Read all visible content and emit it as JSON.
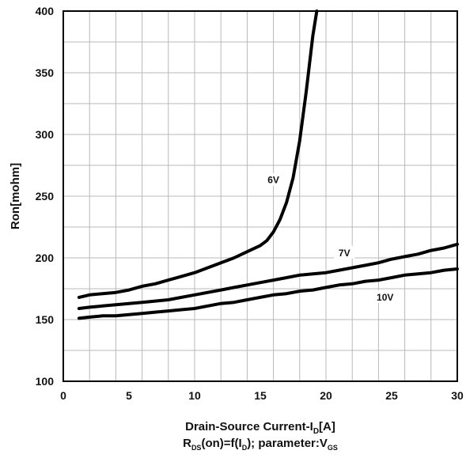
{
  "chart_data": {
    "type": "line",
    "xlabel_main": "Drain-Source Current-I",
    "xlabel_sub": "D",
    "xlabel_unit": "[A]",
    "subtitle_parts": [
      "R",
      "DS",
      "(on)=f(I",
      "D",
      "); parameter:V",
      "GS"
    ],
    "ylabel": "Ron[mohm]",
    "xlim": [
      0,
      30
    ],
    "ylim": [
      100,
      400
    ],
    "x_ticks": [
      0,
      5,
      10,
      15,
      20,
      25,
      30
    ],
    "x_tick_labels": [
      "0",
      "5",
      "10",
      "15",
      "20",
      "25",
      "30"
    ],
    "y_ticks": [
      100,
      150,
      200,
      250,
      300,
      350,
      400
    ],
    "y_tick_labels": [
      "100",
      "150",
      "200",
      "250",
      "300",
      "350",
      "400"
    ],
    "grid": true,
    "series": [
      {
        "name": "6V",
        "x": [
          1.2,
          2,
          3,
          4,
          5,
          6,
          7,
          8,
          9,
          10,
          11,
          12,
          13,
          14,
          15,
          15.5,
          16,
          16.5,
          17,
          17.5,
          18,
          18.5,
          19,
          19.3
        ],
        "y": [
          168,
          170,
          171,
          172,
          174,
          177,
          179,
          182,
          185,
          188,
          192,
          196,
          200,
          205,
          210,
          214,
          221,
          231,
          245,
          265,
          295,
          335,
          380,
          400
        ]
      },
      {
        "name": "7V",
        "x": [
          1.2,
          2,
          3,
          4,
          5,
          6,
          7,
          8,
          9,
          10,
          11,
          12,
          13,
          14,
          15,
          16,
          17,
          18,
          19,
          20,
          21,
          22,
          23,
          24,
          25,
          26,
          27,
          28,
          29,
          30
        ],
        "y": [
          159,
          160,
          161,
          162,
          163,
          164,
          165,
          166,
          168,
          170,
          172,
          174,
          176,
          178,
          180,
          182,
          184,
          186,
          187,
          188,
          190,
          192,
          194,
          196,
          199,
          201,
          203,
          206,
          208,
          211
        ]
      },
      {
        "name": "10V",
        "x": [
          1.2,
          2,
          3,
          4,
          5,
          6,
          7,
          8,
          9,
          10,
          11,
          12,
          13,
          14,
          15,
          16,
          17,
          18,
          19,
          20,
          21,
          22,
          23,
          24,
          25,
          26,
          27,
          28,
          29,
          30
        ],
        "y": [
          151,
          152,
          153,
          153,
          154,
          155,
          156,
          157,
          158,
          159,
          161,
          163,
          164,
          166,
          168,
          170,
          171,
          173,
          174,
          176,
          178,
          179,
          181,
          182,
          184,
          186,
          187,
          188,
          190,
          191
        ]
      }
    ],
    "annotations": [
      {
        "text": "6V",
        "x": 16.0,
        "y": 263
      },
      {
        "text": "7V",
        "x": 21.4,
        "y": 204
      },
      {
        "text": "10V",
        "x": 24.5,
        "y": 168
      }
    ]
  }
}
